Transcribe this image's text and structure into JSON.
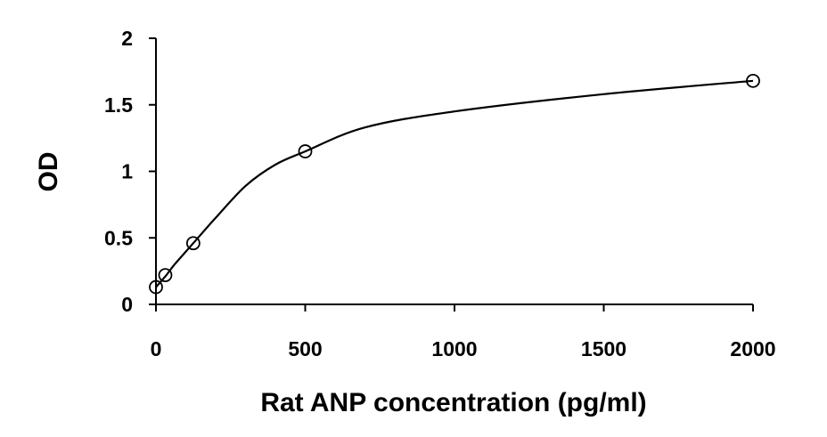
{
  "chart_data": {
    "type": "scatter",
    "title": "",
    "xlabel": "Rat ANP concentration (pg/ml)",
    "ylabel": "OD",
    "xlim": [
      0,
      2000
    ],
    "ylim": [
      0,
      2
    ],
    "x_ticks": [
      "0",
      "500",
      "1000",
      "1500",
      "2000"
    ],
    "y_ticks": [
      "0",
      "0.5",
      "1",
      "1.5",
      "2"
    ],
    "grid": false,
    "legend": "none",
    "series": [
      {
        "x": [
          0,
          31.25,
          125,
          500,
          2000
        ],
        "y": [
          0.13,
          0.22,
          0.46,
          1.15,
          1.68
        ],
        "marker": "open-circle",
        "line": "smooth-fit",
        "color": "#000000"
      }
    ],
    "fit_curve": {
      "x": [
        0,
        31.25,
        62.5,
        125,
        200,
        300,
        400,
        500,
        700,
        1000,
        1500,
        2000
      ],
      "y": [
        0.13,
        0.21,
        0.3,
        0.46,
        0.65,
        0.89,
        1.05,
        1.15,
        1.33,
        1.45,
        1.58,
        1.68
      ]
    }
  }
}
